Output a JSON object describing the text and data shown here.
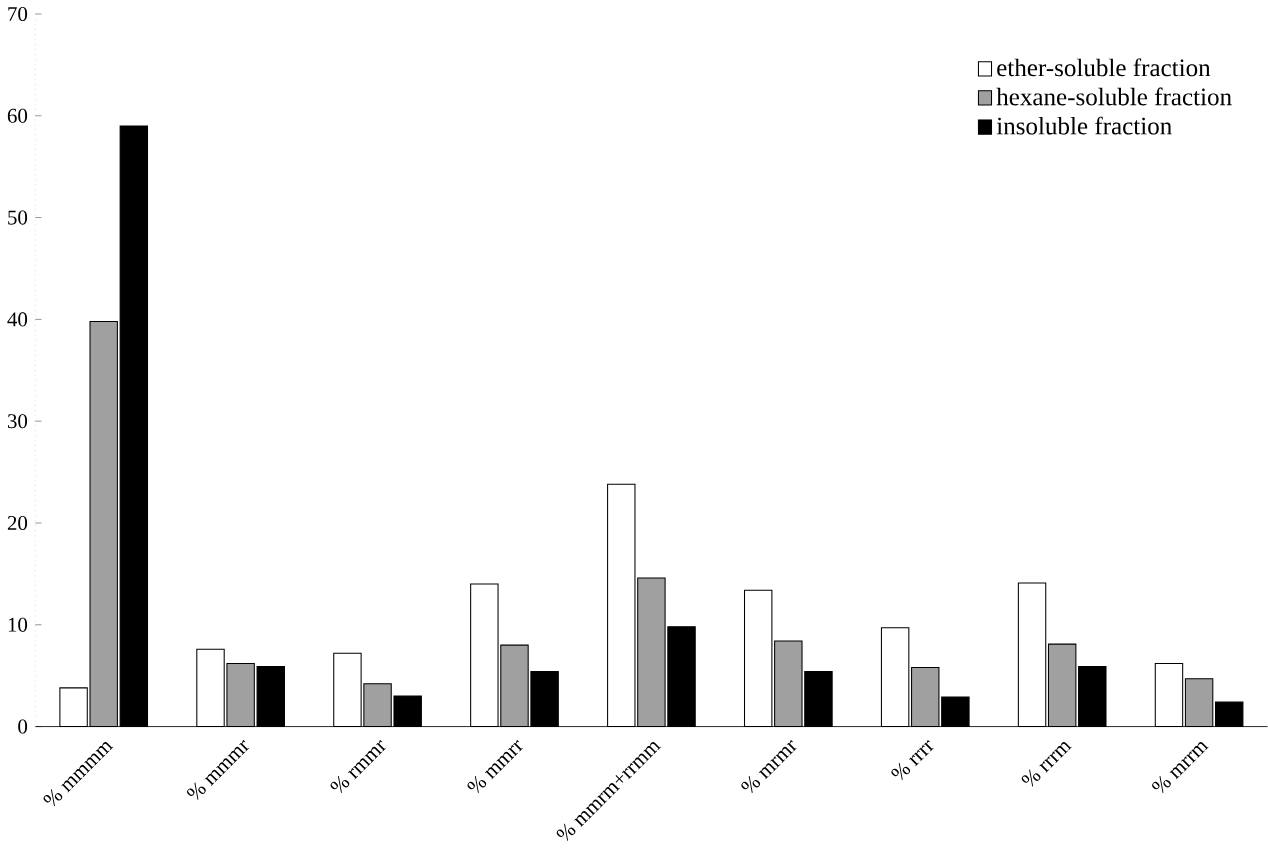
{
  "chart_data": {
    "type": "bar",
    "categories": [
      "% mmmm",
      "% mmmr",
      "% rmmr",
      "% mmrr",
      "% mmrm+rrmm",
      "% mrmr",
      "% rrrr",
      "% rrrm",
      "% mrrm"
    ],
    "series": [
      {
        "name": "ether-soluble fraction",
        "color": "#ffffff",
        "values": [
          3.8,
          7.6,
          7.2,
          14,
          23.8,
          13.4,
          9.7,
          14.1,
          6.2
        ]
      },
      {
        "name": "hexane-soluble fraction",
        "color": "#a0a0a0",
        "values": [
          39.8,
          6.2,
          4.2,
          8,
          14.6,
          8.4,
          5.8,
          8.1,
          4.7
        ]
      },
      {
        "name": "insoluble fraction",
        "color": "#000000",
        "values": [
          59,
          5.9,
          3.0,
          5.4,
          9.8,
          5.4,
          2.9,
          5.9,
          2.4
        ]
      }
    ],
    "ylim": [
      0,
      70
    ],
    "yticks": [
      0,
      10,
      20,
      30,
      40,
      50,
      60,
      70
    ],
    "grid": false,
    "legend": "top right"
  }
}
